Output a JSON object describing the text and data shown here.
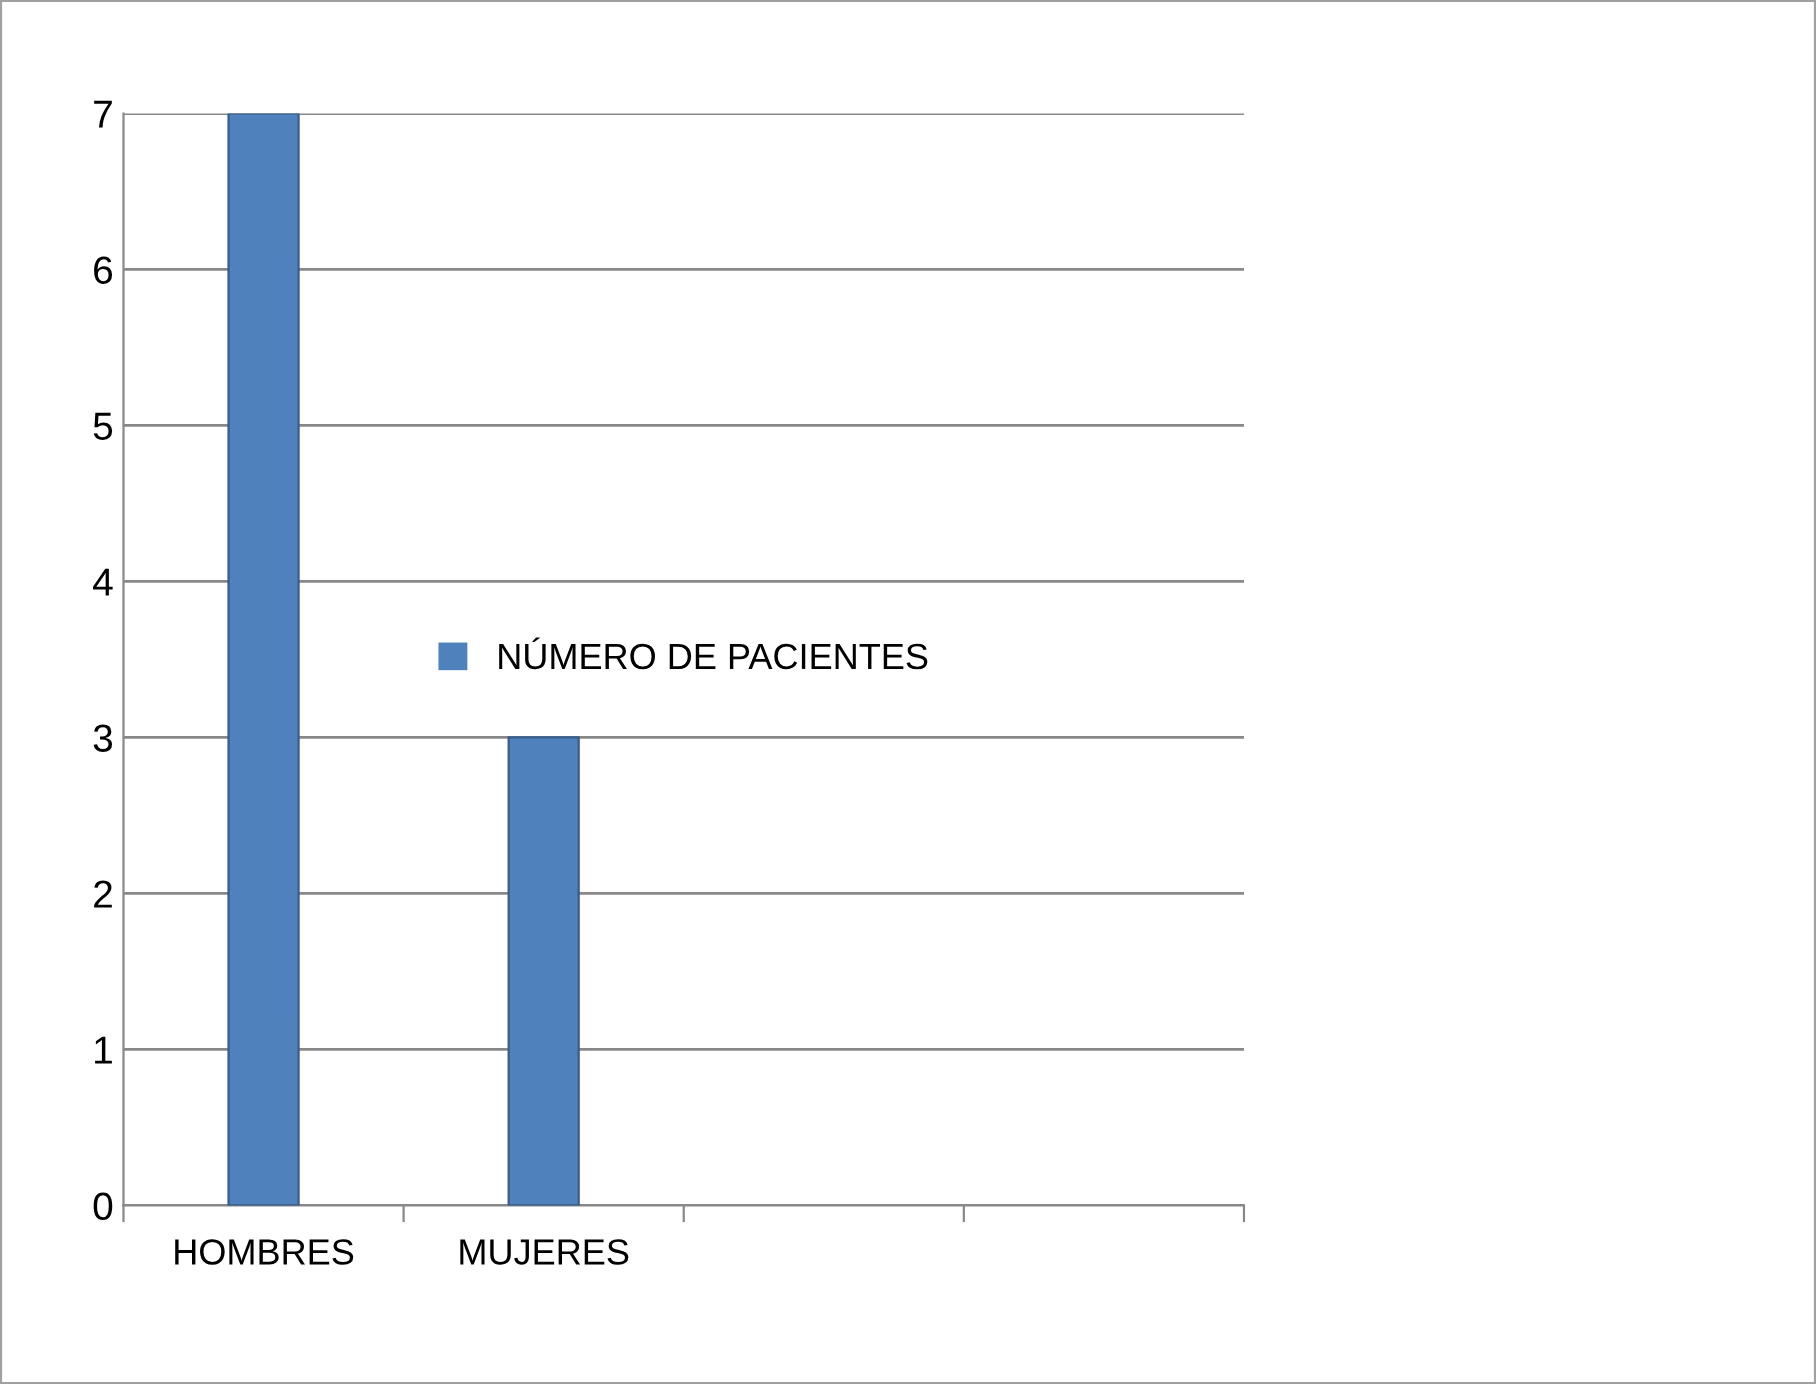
{
  "chart_data": {
    "type": "bar",
    "categories": [
      "HOMBRES",
      "MUJERES",
      null,
      null
    ],
    "series": [
      {
        "name": "NÚMERO DE PACIENTES",
        "color": "#4f81bd",
        "values": [
          7,
          3,
          null,
          null
        ]
      }
    ],
    "ylim": [
      0,
      7
    ],
    "yticks": [
      0,
      1,
      2,
      3,
      4,
      5,
      6,
      7
    ],
    "grid": "y",
    "legend": "center"
  }
}
